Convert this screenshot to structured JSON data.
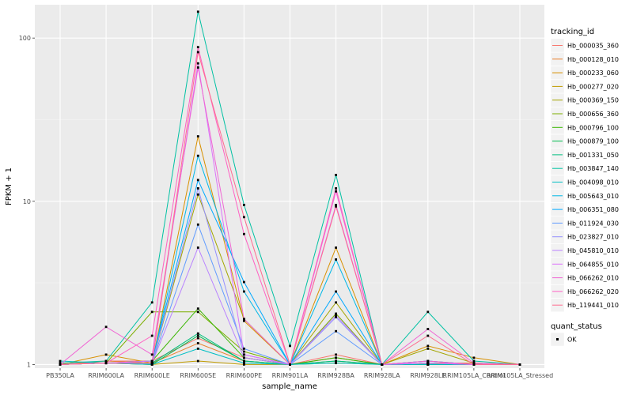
{
  "chart_data": {
    "type": "line",
    "xlabel": "sample_name",
    "ylabel": "FPKM + 1",
    "yscale": "log10",
    "ylim": [
      0.95,
      160
    ],
    "yticks": [
      1,
      10,
      100
    ],
    "ytick_labels": [
      "1",
      "10",
      "100"
    ],
    "grid": true,
    "legend_placement": "right",
    "categories": [
      "PB350LA",
      "RRIM600LA",
      "RRIM600LE",
      "RRIM600SE",
      "RRIM600PE",
      "RRIM901LA",
      "RRIM928BA",
      "RRIM928LA",
      "RRIM928LE",
      "RRIM105LA_Control",
      "RRIM105LA_Stressed"
    ],
    "legend_title": "tracking_id",
    "series": [
      {
        "name": "Hb_000035_360",
        "color": "#F8766D",
        "values": [
          1.0,
          1.05,
          1.05,
          1.45,
          1.1,
          1.0,
          1.15,
          1.0,
          1.02,
          1.02,
          1.0
        ]
      },
      {
        "name": "Hb_000128_010",
        "color": "#EA8331",
        "values": [
          1.0,
          1.05,
          1.02,
          1.35,
          1.05,
          1.0,
          1.1,
          1.0,
          1.02,
          1.02,
          1.0
        ]
      },
      {
        "name": "Hb_000233_060",
        "color": "#D89000",
        "values": [
          1.0,
          1.15,
          1.02,
          25.0,
          1.85,
          1.0,
          5.2,
          1.0,
          1.3,
          1.1,
          1.0
        ]
      },
      {
        "name": "Hb_000277_020",
        "color": "#C09B00",
        "values": [
          1.0,
          1.02,
          1.0,
          1.05,
          1.0,
          1.0,
          1.02,
          1.0,
          1.0,
          1.0,
          1.0
        ]
      },
      {
        "name": "Hb_000369_150",
        "color": "#A3A500",
        "values": [
          1.0,
          1.02,
          1.02,
          11.0,
          1.9,
          1.0,
          2.4,
          1.0,
          1.25,
          1.02,
          1.0
        ]
      },
      {
        "name": "Hb_000656_360",
        "color": "#7CAE00",
        "values": [
          1.0,
          1.02,
          2.1,
          2.1,
          1.2,
          1.0,
          2.05,
          1.0,
          1.0,
          1.0,
          1.0
        ]
      },
      {
        "name": "Hb_000796_100",
        "color": "#39B600",
        "values": [
          1.0,
          1.02,
          1.05,
          2.2,
          1.1,
          1.0,
          1.1,
          1.0,
          1.02,
          1.0,
          1.0
        ]
      },
      {
        "name": "Hb_000879_100",
        "color": "#00BB4E",
        "values": [
          1.0,
          1.02,
          1.0,
          1.5,
          1.05,
          1.0,
          1.05,
          1.0,
          1.0,
          1.0,
          1.0
        ]
      },
      {
        "name": "Hb_001331_050",
        "color": "#00BF7D",
        "values": [
          1.0,
          1.02,
          1.02,
          1.55,
          1.05,
          1.0,
          1.05,
          1.0,
          1.0,
          1.0,
          1.0
        ]
      },
      {
        "name": "Hb_003847_140",
        "color": "#00C1A3",
        "values": [
          1.02,
          1.05,
          2.4,
          145.0,
          9.5,
          1.3,
          14.5,
          1.0,
          2.1,
          1.05,
          1.0
        ]
      },
      {
        "name": "Hb_004098_010",
        "color": "#00BFC4",
        "values": [
          1.05,
          1.02,
          1.0,
          1.25,
          1.02,
          1.0,
          1.02,
          1.0,
          1.0,
          1.0,
          1.0
        ]
      },
      {
        "name": "Hb_005643_010",
        "color": "#00B8E7",
        "values": [
          1.0,
          1.02,
          1.02,
          19.0,
          2.8,
          1.0,
          4.4,
          1.0,
          1.05,
          1.0,
          1.0
        ]
      },
      {
        "name": "Hb_006351_080",
        "color": "#00A9FF",
        "values": [
          1.0,
          1.02,
          1.05,
          13.5,
          3.2,
          1.0,
          2.8,
          1.0,
          1.05,
          1.0,
          1.0
        ]
      },
      {
        "name": "Hb_011924_030",
        "color": "#619CFF",
        "values": [
          1.0,
          1.02,
          1.02,
          7.2,
          1.25,
          1.0,
          1.6,
          1.0,
          1.02,
          1.0,
          1.0
        ]
      },
      {
        "name": "Hb_023827_010",
        "color": "#9590FF",
        "values": [
          1.0,
          1.02,
          1.02,
          12.0,
          1.15,
          1.0,
          1.95,
          1.0,
          1.02,
          1.0,
          1.0
        ]
      },
      {
        "name": "Hb_045810_010",
        "color": "#B983FF",
        "values": [
          1.0,
          1.02,
          1.02,
          5.2,
          1.1,
          1.0,
          2.0,
          1.0,
          1.02,
          1.0,
          1.0
        ]
      },
      {
        "name": "Hb_064855_010",
        "color": "#DB72FB",
        "values": [
          1.0,
          1.02,
          1.05,
          70.0,
          1.15,
          1.0,
          9.5,
          1.0,
          1.02,
          1.0,
          1.0
        ]
      },
      {
        "name": "Hb_066262_010",
        "color": "#F066D4",
        "values": [
          1.0,
          1.7,
          1.15,
          66.0,
          1.9,
          1.0,
          11.5,
          1.0,
          1.65,
          1.02,
          1.0
        ]
      },
      {
        "name": "Hb_066262_020",
        "color": "#FF61C3",
        "values": [
          1.0,
          1.02,
          1.5,
          88.0,
          6.3,
          1.0,
          12.0,
          1.0,
          1.05,
          1.0,
          1.0
        ]
      },
      {
        "name": "Hb_119441_010",
        "color": "#FF6C90",
        "values": [
          1.0,
          1.02,
          1.02,
          82.0,
          8.0,
          1.0,
          9.3,
          1.0,
          1.5,
          1.0,
          1.0
        ]
      }
    ],
    "shape_legend_title": "quant_status",
    "shape_legend_items": [
      "OK"
    ]
  }
}
